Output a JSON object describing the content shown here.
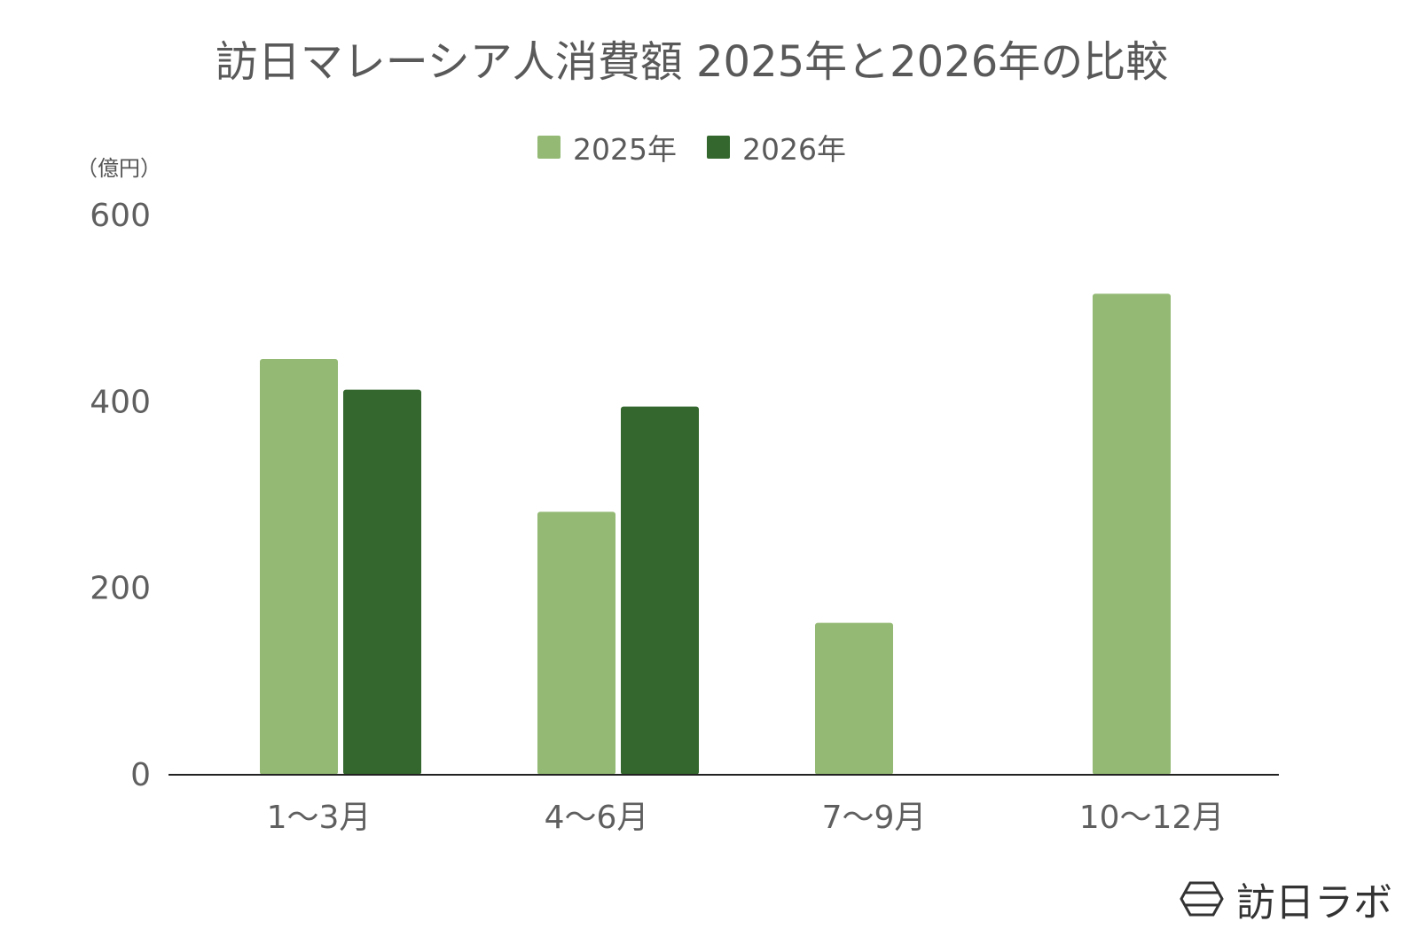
{
  "title": "訪日マレーシア人消費額 2025年と2026年の比較",
  "unit_label": "（億円）",
  "logo_text": "訪日ラボ",
  "colors": {
    "series_2025": "#93b974",
    "series_2026": "#33672d",
    "axis": "#222222",
    "text": "#5f5f5f"
  },
  "chart_data": {
    "type": "bar",
    "title": "訪日マレーシア人消費額 2025年と2026年の比較",
    "categories": [
      "1〜3月",
      "4〜6月",
      "7〜9月",
      "10〜12月"
    ],
    "series": [
      {
        "name": "2025年",
        "values": [
          446,
          282,
          163,
          516
        ]
      },
      {
        "name": "2026年",
        "values": [
          413,
          395,
          null,
          null
        ]
      }
    ],
    "yticks": [
      "600",
      "400",
      "200",
      "0"
    ],
    "ylim": [
      0,
      600
    ],
    "ylabel": "（億円）",
    "legend_position": "top",
    "grid": false
  }
}
